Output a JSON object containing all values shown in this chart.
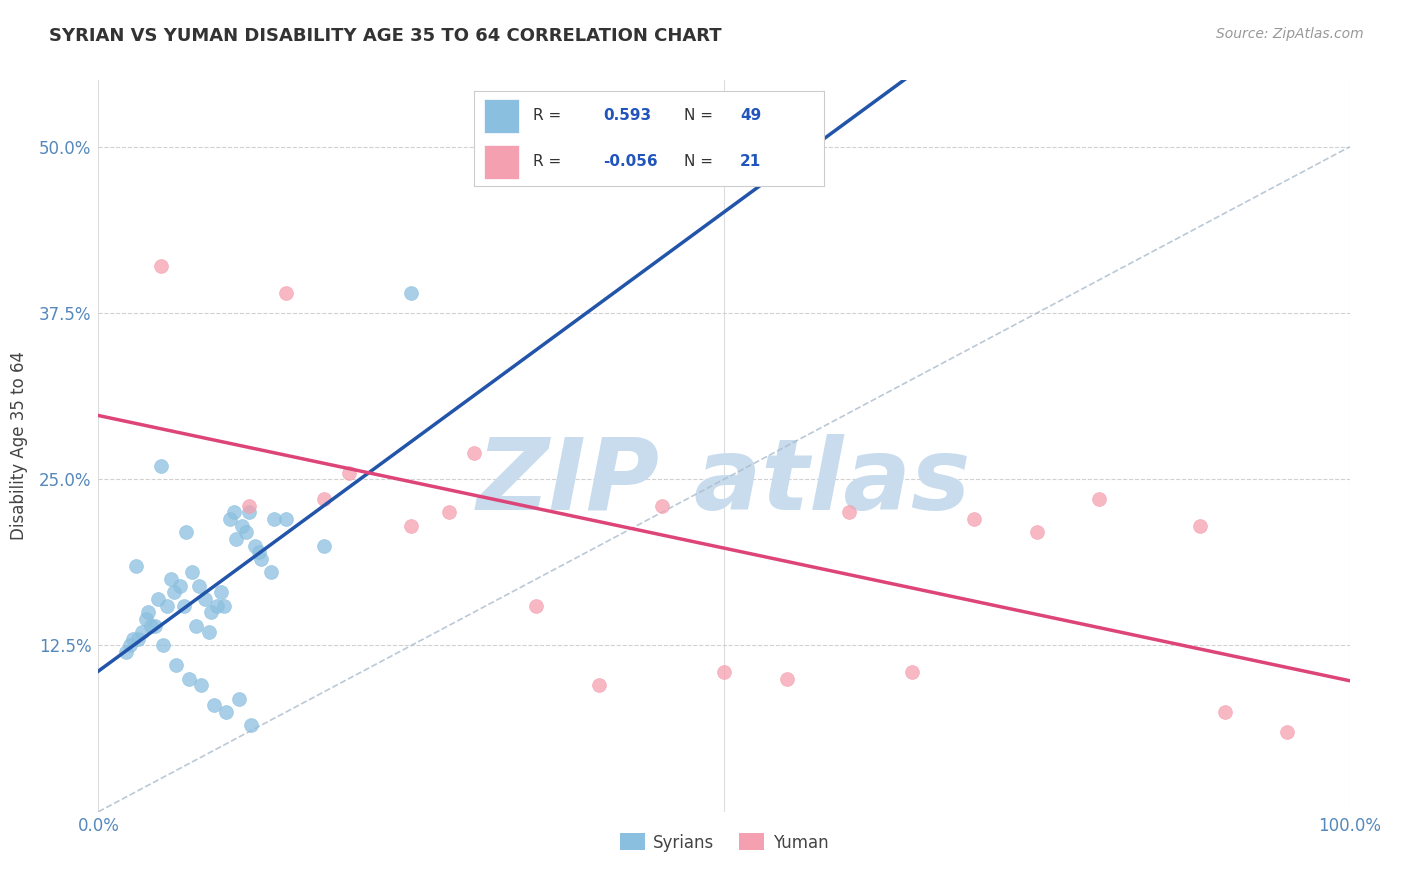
{
  "title": "SYRIAN VS YUMAN DISABILITY AGE 35 TO 64 CORRELATION CHART",
  "source_text": "Source: ZipAtlas.com",
  "ylabel": "Disability Age 35 to 64",
  "r_syrian": "0.593",
  "n_syrian": "49",
  "r_yuman": "-0.056",
  "n_yuman": "21",
  "syrian_color": "#8bbfdf",
  "yuman_color": "#f5a0b0",
  "syrian_line_color": "#2255aa",
  "yuman_line_color": "#dd4477",
  "background_color": "#ffffff",
  "grid_color": "#cccccc",
  "title_color": "#333333",
  "watermark_color": "#c8dcee",
  "syrians_x": [
    0.5,
    2.5,
    1.5,
    0.7,
    0.3,
    1.0,
    1.8,
    1.2,
    0.9,
    0.6,
    0.4,
    0.35,
    0.25,
    0.45,
    0.55,
    0.8,
    1.1,
    1.3,
    0.65,
    0.75,
    0.85,
    0.95,
    1.05,
    1.15,
    1.25,
    1.4,
    0.28,
    0.38,
    0.48,
    0.58,
    0.68,
    0.78,
    0.88,
    0.98,
    1.08,
    1.18,
    1.28,
    1.38,
    0.22,
    0.32,
    0.42,
    0.52,
    0.62,
    0.72,
    0.82,
    0.92,
    1.02,
    1.12,
    1.22
  ],
  "syrians_y": [
    26.0,
    39.0,
    22.0,
    21.0,
    18.5,
    15.5,
    20.0,
    22.5,
    15.0,
    16.5,
    15.0,
    13.5,
    12.5,
    14.0,
    15.5,
    17.0,
    20.5,
    19.0,
    17.0,
    18.0,
    16.0,
    15.5,
    22.0,
    21.5,
    20.0,
    22.0,
    13.0,
    14.5,
    16.0,
    17.5,
    15.5,
    14.0,
    13.5,
    16.5,
    22.5,
    21.0,
    19.5,
    18.0,
    12.0,
    13.0,
    14.0,
    12.5,
    11.0,
    10.0,
    9.5,
    8.0,
    7.5,
    8.5,
    6.5
  ],
  "yuman_x": [
    0.5,
    1.5,
    3.0,
    2.8,
    4.0,
    5.5,
    6.5,
    8.0,
    9.5,
    2.0,
    7.5,
    4.5,
    3.5,
    2.5,
    1.8,
    6.0,
    7.0,
    8.8,
    5.0,
    9.0,
    1.2
  ],
  "yuman_y": [
    41.0,
    39.0,
    27.0,
    22.5,
    9.5,
    10.0,
    10.5,
    23.5,
    6.0,
    25.5,
    21.0,
    23.0,
    15.5,
    21.5,
    23.5,
    22.5,
    22.0,
    21.5,
    10.5,
    7.5,
    23.0
  ],
  "xlim_pct": [
    0,
    100
  ],
  "ylim_pct": [
    0,
    55
  ],
  "x_scale": 10,
  "yticks": [
    12.5,
    25.0,
    37.5,
    50.0
  ],
  "xticks": [
    0,
    100
  ]
}
